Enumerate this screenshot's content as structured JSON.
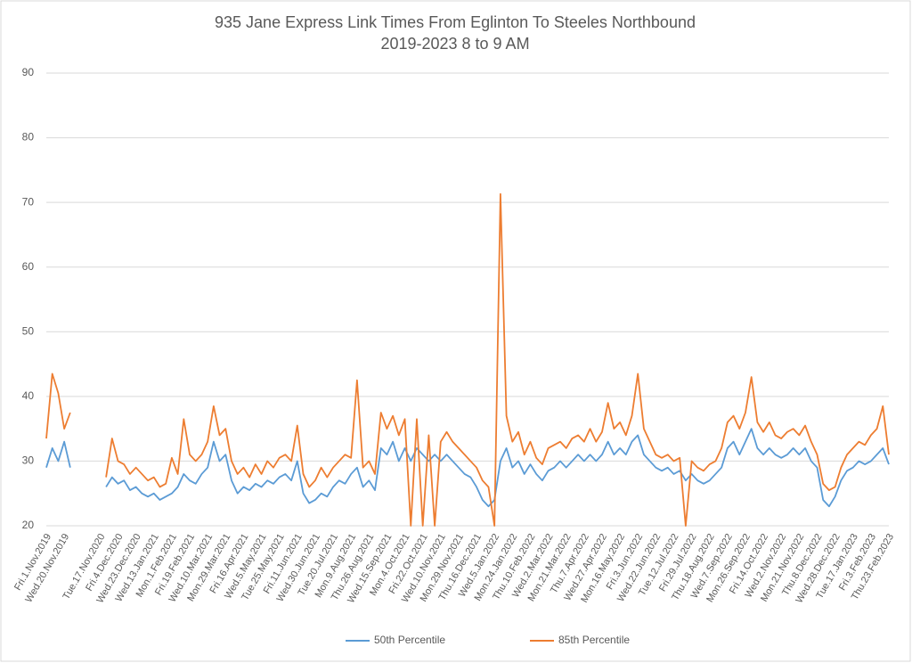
{
  "chart_data": {
    "type": "line",
    "title": "935 Jane Express Link Times From Eglinton To Steeles Northbound",
    "subtitle": "2019-2023 8 to 9 AM",
    "categories": [
      "Fri.1.Nov.2019",
      null,
      null,
      "Wed.20.Nov.2019",
      null,
      null,
      null,
      null,
      null,
      "Tue.17.Nov.2020",
      null,
      null,
      "Fri.4.Dec.2020",
      null,
      null,
      "Wed.23.Dec.2020",
      null,
      null,
      "Wed.13.Jan.2021",
      null,
      null,
      "Mon.1.Feb.2021",
      null,
      null,
      "Fri.19.Feb.2021",
      null,
      null,
      "Wed.10.Mar.2021",
      null,
      null,
      "Mon.29.Mar.2021",
      null,
      null,
      "Fri.16.Apr.2021",
      null,
      null,
      "Wed.5.May.2021",
      null,
      null,
      "Tue.25.May.2021",
      null,
      null,
      "Fri.11.Jun.2021",
      null,
      null,
      "Wed.30.Jun.2021",
      null,
      null,
      "Tue.20.Jul.2021",
      null,
      null,
      "Mon.9.Aug.2021",
      null,
      null,
      "Thu.26.Aug.2021",
      null,
      null,
      "Wed.15.Sep.2021",
      null,
      null,
      "Mon.4.Oct.2021",
      null,
      null,
      "Fri.22.Oct.2021",
      null,
      null,
      "Wed.10.Nov.2021",
      null,
      null,
      "Mon.29.Nov.2021",
      null,
      null,
      "Thu.16.Dec.2021",
      null,
      null,
      "Wed.5.Jan.2022",
      null,
      null,
      "Mon.24.Jan.2022",
      null,
      null,
      "Thu.10.Feb.2022",
      null,
      null,
      "Wed.2.Mar.2022",
      null,
      null,
      "Mon.21.Mar.2022",
      null,
      null,
      "Thu.7.Apr.2022",
      null,
      null,
      "Wed.27.Apr.2022",
      null,
      null,
      "Mon.16.May.2022",
      null,
      null,
      "Fri.3.Jun.2022",
      null,
      null,
      "Wed.22.Jun.2022",
      null,
      null,
      "Tue.12.Jul.2022",
      null,
      null,
      "Fri.29.Jul.2022",
      null,
      null,
      "Thu.18.Aug.2022",
      null,
      null,
      "Wed.7.Sep.2022",
      null,
      null,
      "Mon.26.Sep.2022",
      null,
      null,
      "Fri.14.Oct.2022",
      null,
      null,
      "Wed.2.Nov.2022",
      null,
      null,
      "Mon.21.Nov.2022",
      null,
      null,
      "Thu.8.Dec.2022",
      null,
      null,
      "Wed.28.Dec.2022",
      null,
      null,
      "Tue.17.Jan.2023",
      null,
      null,
      "Fri.3.Feb.2023",
      null,
      null,
      "Thu.23.Feb.2023"
    ],
    "series": [
      {
        "name": "50th Percentile",
        "color": "#5b9bd5",
        "values": [
          29,
          32,
          30,
          33,
          29,
          null,
          null,
          null,
          null,
          null,
          26,
          27.5,
          26.5,
          27,
          25.5,
          26,
          25,
          24.5,
          25,
          24,
          24.5,
          25,
          26,
          28,
          27,
          26.5,
          28,
          29,
          33,
          30,
          31,
          27,
          25,
          26,
          25.5,
          26.5,
          26,
          27,
          26.5,
          27.5,
          28,
          27,
          30,
          25,
          23.5,
          24,
          25,
          24.5,
          26,
          27,
          26.5,
          28,
          29,
          26,
          27,
          25.5,
          32,
          31,
          33,
          30,
          32,
          30,
          32,
          31,
          30,
          31,
          30,
          31,
          30,
          29,
          28,
          27.5,
          26,
          24,
          23,
          24,
          30,
          32,
          29,
          30,
          28,
          29.5,
          28,
          27,
          28.5,
          29,
          30,
          29,
          30,
          31,
          30,
          31,
          30,
          31,
          33,
          31,
          32,
          31,
          33,
          34,
          31,
          30,
          29,
          28.5,
          29,
          28,
          28.5,
          27,
          28,
          27,
          26.5,
          27,
          28,
          29,
          32,
          33,
          31,
          33,
          35,
          32,
          31,
          32,
          31,
          30.5,
          31,
          32,
          31,
          32,
          30,
          29,
          24,
          23,
          24.5,
          27,
          28.5,
          29,
          30,
          29.5,
          30,
          31,
          32,
          29.5
        ]
      },
      {
        "name": "85th Percentile",
        "color": "#ed7d31",
        "values": [
          33.5,
          43.5,
          40.5,
          35,
          37.5,
          null,
          null,
          null,
          null,
          null,
          27.5,
          33.5,
          30,
          29.5,
          28,
          29,
          28,
          27,
          27.5,
          26,
          26.5,
          30.5,
          28,
          36.5,
          31,
          30,
          31,
          33,
          38.5,
          34,
          35,
          30,
          28,
          29,
          27.5,
          29.5,
          28,
          30,
          29,
          30.5,
          31,
          30,
          35.5,
          28,
          26,
          27,
          29,
          27.5,
          29,
          30,
          31,
          30.5,
          42.5,
          29,
          30,
          28,
          37.5,
          35,
          37,
          34,
          36.5,
          20,
          36.5,
          20,
          34,
          20,
          33,
          34.5,
          33,
          32,
          31,
          30,
          29,
          27,
          26,
          20,
          71.3,
          37,
          33,
          34.5,
          31,
          33,
          30.5,
          29.5,
          32,
          32.5,
          33,
          32,
          33.5,
          34,
          33,
          35,
          33,
          34.5,
          39,
          35,
          36,
          34,
          37,
          43.5,
          35,
          33,
          31,
          30.5,
          31,
          30,
          30.5,
          20,
          30,
          29,
          28.5,
          29.5,
          30,
          32,
          36,
          37,
          35,
          37.5,
          43,
          36,
          34.5,
          36,
          34,
          33.5,
          34.5,
          35,
          34,
          35.5,
          33,
          31,
          26.5,
          25.5,
          26,
          29,
          31,
          32,
          33,
          32.5,
          34,
          35,
          38.5,
          31
        ]
      }
    ],
    "ylim": [
      20,
      90
    ],
    "yticks": [
      20,
      30,
      40,
      50,
      60,
      70,
      80,
      90
    ],
    "grid": true,
    "legend": "bottom"
  }
}
